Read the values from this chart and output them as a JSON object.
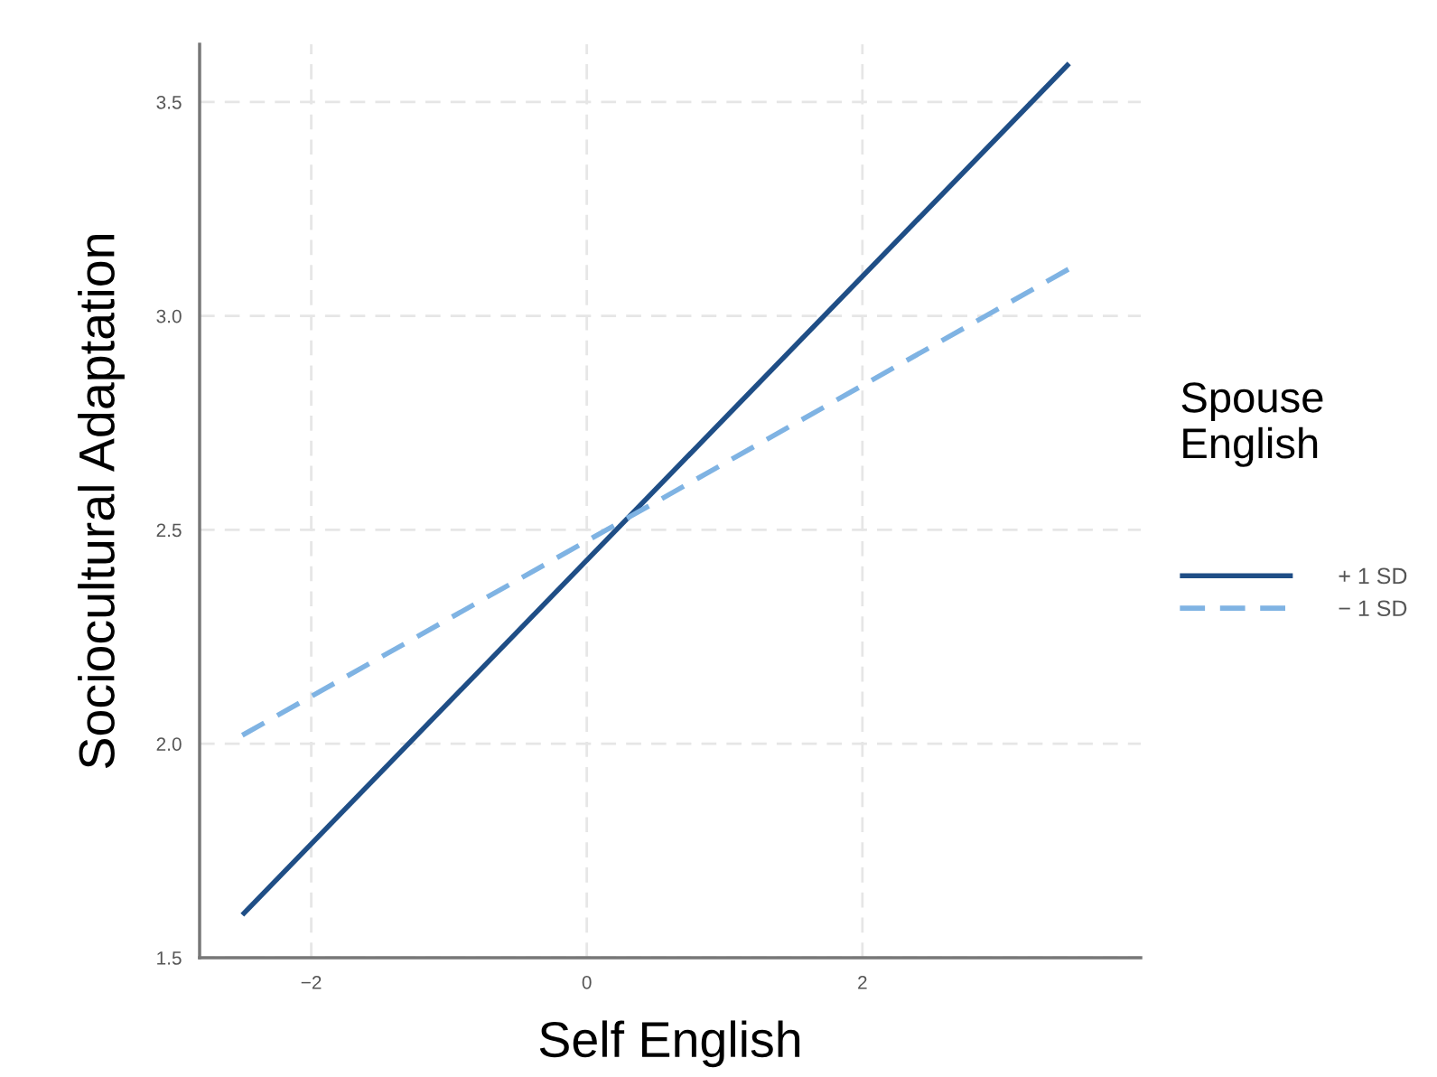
{
  "chart_data": {
    "type": "line",
    "xlabel": "Self English",
    "ylabel": "Sociocultural Adaptation",
    "legend_title": "Spouse\nEnglish",
    "legend": "right",
    "grid": true,
    "xlim": [
      -2.81,
      4.02
    ],
    "ylim": [
      1.5,
      3.635
    ],
    "xticks": [
      {
        "value": -2,
        "label": "−2"
      },
      0,
      2
    ],
    "yticks": [
      {
        "value": 1.5,
        "label": "1.5"
      },
      {
        "value": 2.0,
        "label": "2.0"
      },
      {
        "value": 2.5,
        "label": "2.5"
      },
      {
        "value": 3.0,
        "label": "3.0"
      },
      {
        "value": 3.5,
        "label": "3.5"
      }
    ],
    "x": [
      -2.5,
      3.5
    ],
    "series": [
      {
        "name": "+ 1 SD",
        "color": "#1f4e86",
        "line_style": "solid",
        "values": [
          1.6,
          3.59
        ]
      },
      {
        "name": "− 1 SD",
        "color": "#7fb3e3",
        "line_style": "dashed",
        "values": [
          2.02,
          3.11
        ]
      }
    ]
  }
}
